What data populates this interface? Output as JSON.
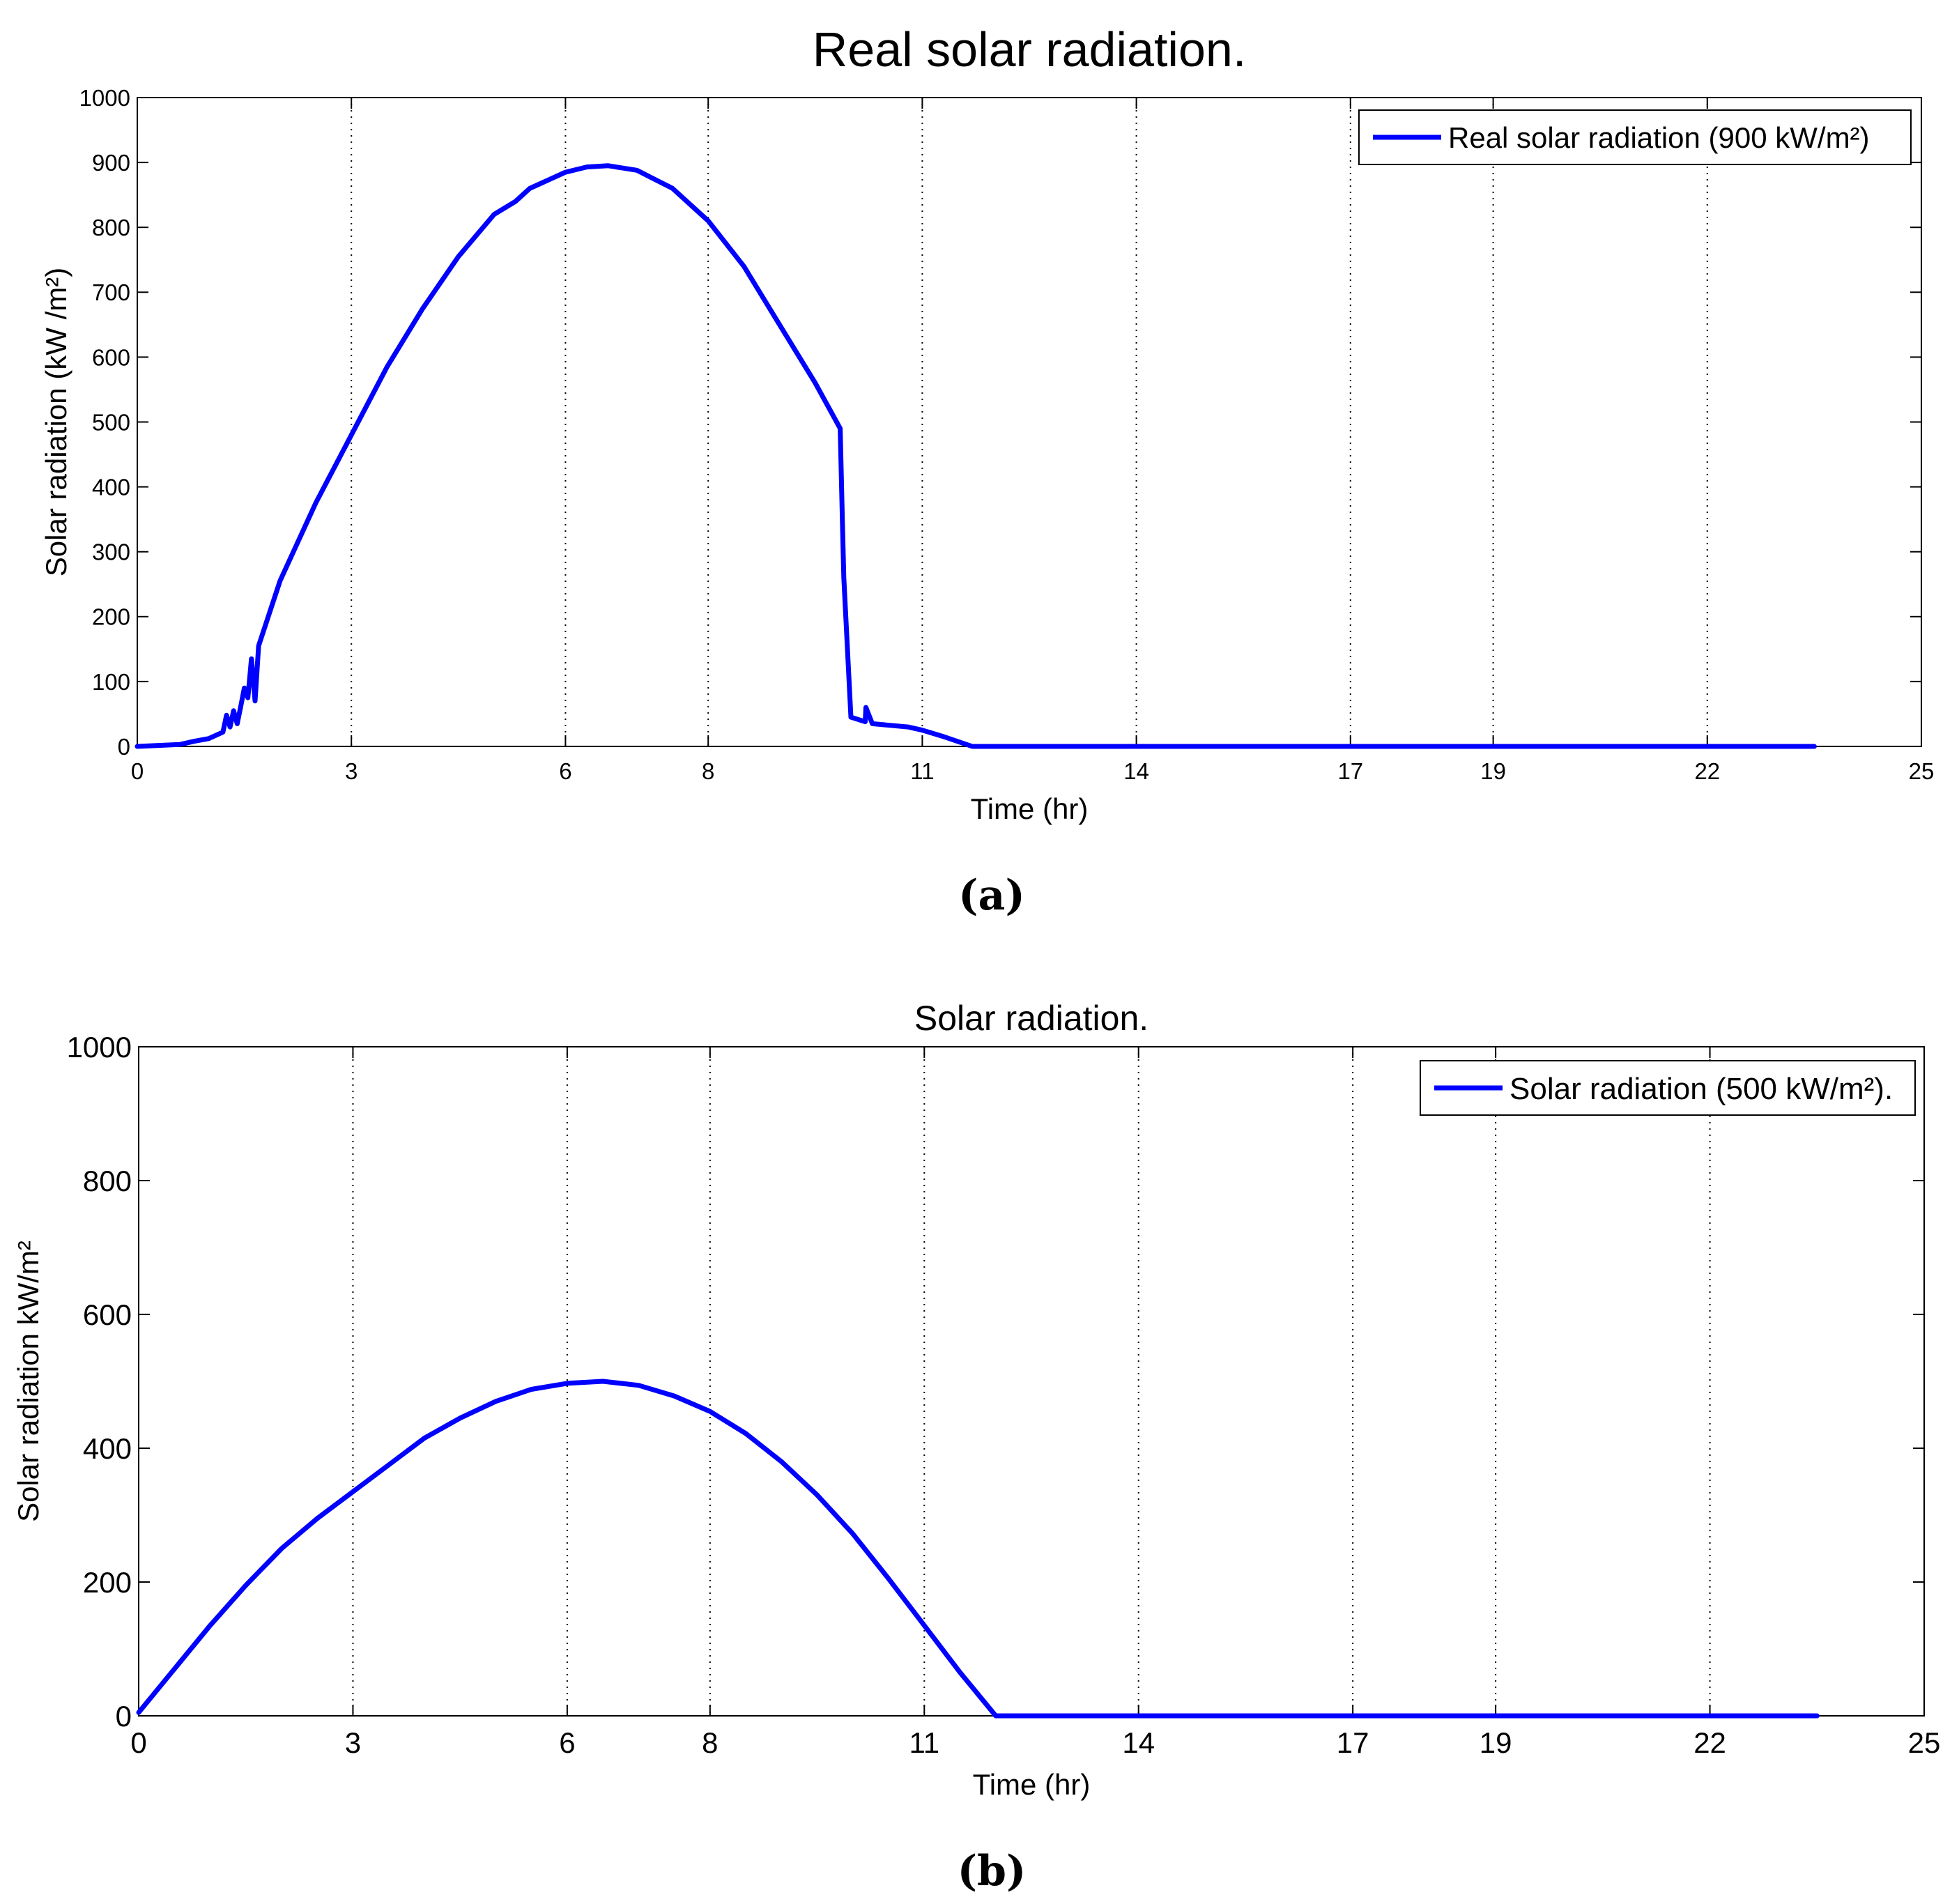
{
  "chart_data": [
    {
      "type": "line",
      "title": "Real solar radiation.",
      "xlabel": "Time (hr)",
      "ylabel": "Solar radiation  (kW /m²)",
      "xlim": [
        0,
        25
      ],
      "ylim": [
        0,
        1000
      ],
      "xticks": [
        0,
        3,
        6,
        8,
        11,
        14,
        17,
        19,
        22,
        25
      ],
      "yticks": [
        0,
        100,
        200,
        300,
        400,
        500,
        600,
        700,
        800,
        900,
        1000
      ],
      "grid": "vertical-dotted",
      "legend_position": "top-right",
      "caption": "(a)",
      "series": [
        {
          "name": "Real solar radiation (900 kW/m²)",
          "color": "#0000ff",
          "x": [
            0,
            0.6,
            0.8,
            1.0,
            1.2,
            1.25,
            1.3,
            1.35,
            1.4,
            1.45,
            1.5,
            1.55,
            1.6,
            1.65,
            1.7,
            2.0,
            2.5,
            3.0,
            3.5,
            4.0,
            4.5,
            5.0,
            5.3,
            5.5,
            6.0,
            6.3,
            6.6,
            7.0,
            7.5,
            8.0,
            8.5,
            9.0,
            9.5,
            9.85,
            9.88,
            9.9,
            10.0,
            10.2,
            10.21,
            10.3,
            10.5,
            10.8,
            11.0,
            11.3,
            11.7,
            12.0,
            14,
            17,
            19,
            22,
            23.5
          ],
          "values": [
            0,
            3,
            8,
            12,
            22,
            48,
            30,
            55,
            35,
            62,
            90,
            75,
            135,
            70,
            155,
            255,
            375,
            480,
            585,
            675,
            755,
            820,
            840,
            860,
            885,
            893,
            895,
            888,
            860,
            810,
            740,
            650,
            560,
            490,
            350,
            260,
            45,
            38,
            60,
            35,
            33,
            30,
            25,
            15,
            0,
            0,
            0,
            0,
            0,
            0,
            0
          ]
        }
      ]
    },
    {
      "type": "line",
      "title": "Solar radiation.",
      "xlabel": "Time (hr)",
      "ylabel": "Solar radiation kW/m²",
      "xlim": [
        0,
        25
      ],
      "ylim": [
        0,
        1000
      ],
      "xticks": [
        0,
        3,
        6,
        8,
        11,
        14,
        17,
        19,
        22,
        25
      ],
      "yticks": [
        0,
        200,
        400,
        600,
        800,
        1000
      ],
      "grid": "vertical-dotted",
      "legend_position": "top-right",
      "caption": "(b)",
      "series": [
        {
          "name": "Solar radiation (500 kW/m²).",
          "color": "#0000ff",
          "x": [
            0,
            0.5,
            1,
            1.5,
            2,
            2.5,
            3,
            3.5,
            4,
            4.5,
            5,
            5.5,
            6,
            6.5,
            7,
            7.5,
            8,
            8.5,
            9,
            9.5,
            10,
            10.5,
            11,
            11.5,
            12,
            14,
            17,
            19,
            22,
            23.5
          ],
          "values": [
            5,
            70,
            135,
            195,
            250,
            295,
            335,
            375,
            415,
            445,
            470,
            488,
            497,
            500,
            494,
            478,
            455,
            422,
            380,
            330,
            272,
            205,
            135,
            65,
            0,
            0,
            0,
            0,
            0,
            0
          ]
        }
      ]
    }
  ]
}
